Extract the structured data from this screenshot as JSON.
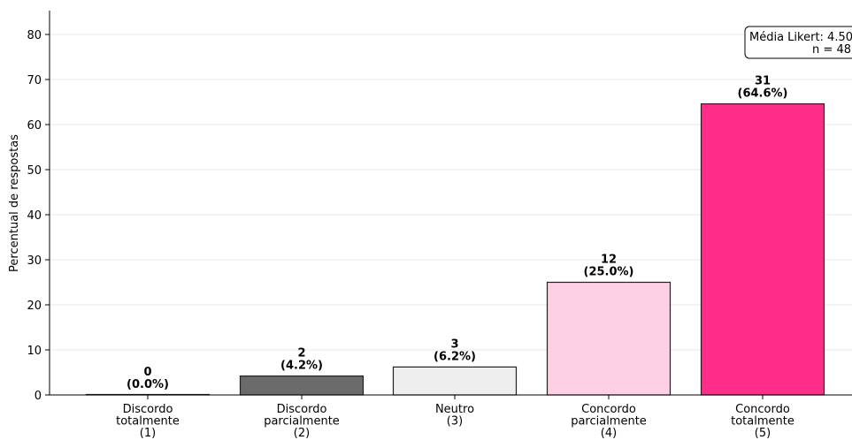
{
  "chart_data": {
    "type": "bar",
    "ylabel": "Percentual de respostas",
    "ylim": [
      0,
      85
    ],
    "yticks": [
      0,
      10,
      20,
      30,
      40,
      50,
      60,
      70,
      80
    ],
    "grid": "horizontal",
    "categories": [
      [
        "Discordo",
        "totalmente",
        "(1)"
      ],
      [
        "Discordo",
        "parcialmente",
        "(2)"
      ],
      [
        "Neutro",
        "(3)"
      ],
      [
        "Concordo",
        "parcialmente",
        "(4)"
      ],
      [
        "Concordo",
        "totalmente",
        "(5)"
      ]
    ],
    "values": [
      0.0,
      4.2,
      6.2,
      25.0,
      64.6
    ],
    "counts": [
      "0",
      "2",
      "3",
      "12",
      "31"
    ],
    "percent_labels": [
      "(0.0%)",
      "(4.2%)",
      "(6.2%)",
      "(25.0%)",
      "(64.6%)"
    ],
    "colors": [
      "#ffffff",
      "#6b6b6b",
      "#eeeeee",
      "#fdd0e4",
      "#ff2d8a"
    ],
    "stats_box": {
      "line1": "Média Likert: 4.50",
      "line2": "n = 48"
    }
  }
}
